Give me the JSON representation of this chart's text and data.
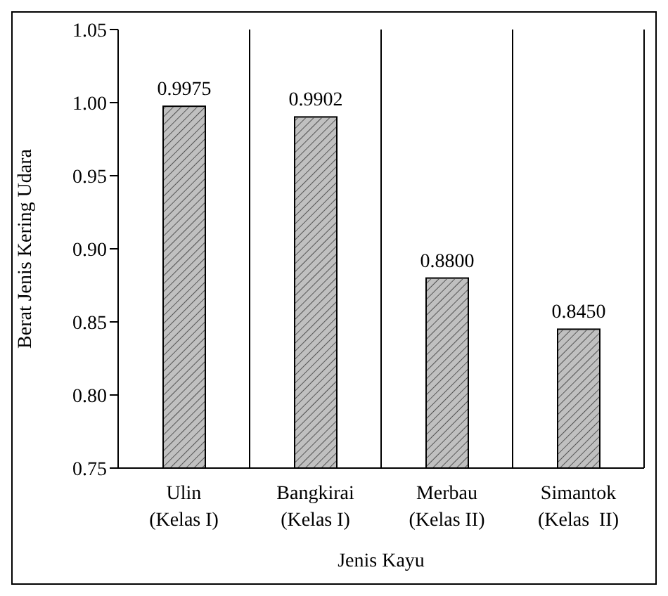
{
  "chart_data": {
    "type": "bar",
    "xlabel": "Jenis  Kayu",
    "ylabel": "Berat  Jenis Kering Udara",
    "categories": [
      "Ulin\n(Kelas I)",
      "Bangkirai\n(Kelas I)",
      "Merbau\n(Kelas II)",
      "Simantok\n(Kelas  II)"
    ],
    "values": [
      0.9975,
      0.9902,
      0.88,
      0.845
    ],
    "value_labels": [
      "0.9975",
      "0.9902",
      "0.8800",
      "0.8450"
    ],
    "color": "#c0c0c0",
    "ylim": [
      0.75,
      1.05
    ],
    "yticks": [
      {
        "value": 0.75,
        "label": "0.75"
      },
      {
        "value": 0.8,
        "label": "0.80"
      },
      {
        "value": 0.85,
        "label": "0.85"
      },
      {
        "value": 0.9,
        "label": "0.90"
      },
      {
        "value": 0.95,
        "label": "0.95"
      },
      {
        "value": 1.0,
        "label": "1.00"
      },
      {
        "value": 1.05,
        "label": "1.05"
      }
    ],
    "grid": "x"
  }
}
